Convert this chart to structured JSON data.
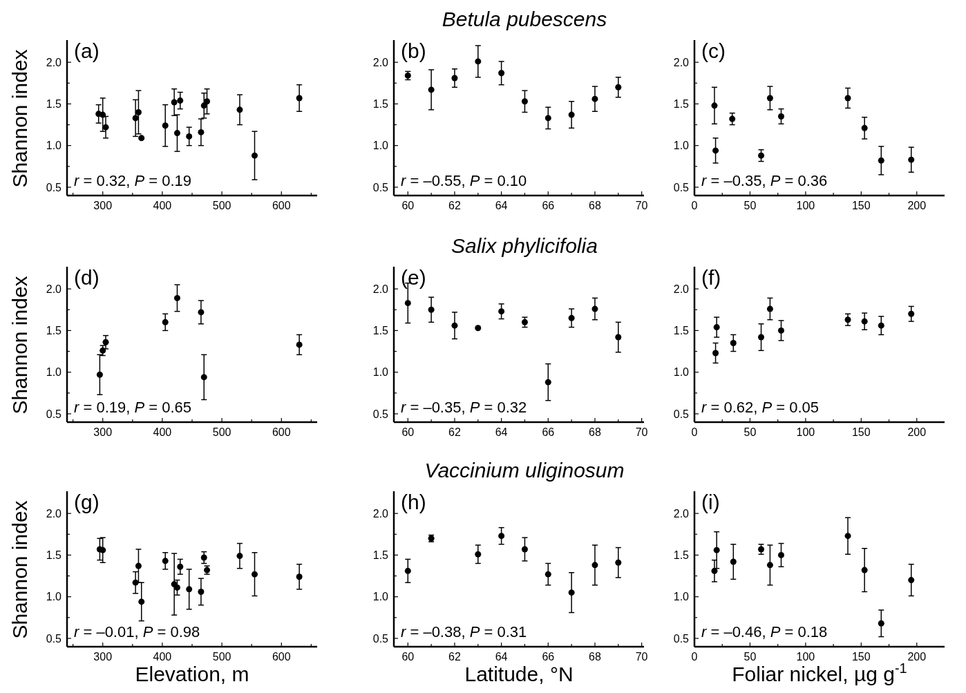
{
  "chart_data": [
    {
      "type": "scatter",
      "ylabel": "Shannon index",
      "annotations": [
        "(a)",
        "r = 0.32, P = 0.19"
      ],
      "marker": "circle",
      "xlim": [
        240,
        660
      ],
      "xticks": [
        {
          "value": 250,
          "label": null
        },
        300,
        {
          "value": 350,
          "label": null
        },
        400,
        {
          "value": 450,
          "label": null
        },
        500,
        {
          "value": 550,
          "label": null
        },
        600,
        {
          "value": 650,
          "label": null
        }
      ],
      "ylim": [
        0.4,
        2.25
      ],
      "yticks": [
        {
          "value": 0.5,
          "label": "0.5"
        },
        {
          "value": 0.75,
          "label": null
        },
        {
          "value": 1,
          "label": "1.0"
        },
        {
          "value": 1.25,
          "label": null
        },
        {
          "value": 1.5,
          "label": "1.5"
        },
        {
          "value": 1.75,
          "label": null
        },
        {
          "value": 2,
          "label": "2.0"
        }
      ],
      "color": "#000000",
      "x": [
        293,
        300,
        305,
        355,
        360,
        365,
        405,
        420,
        425,
        430,
        445,
        465,
        470,
        475,
        530,
        555,
        630
      ],
      "values": [
        1.38,
        1.37,
        1.22,
        1.33,
        1.4,
        1.09,
        1.24,
        1.52,
        1.15,
        1.54,
        1.11,
        1.16,
        1.48,
        1.53,
        1.43,
        0.88,
        1.57
      ],
      "errors": [
        0.11,
        0.2,
        0.13,
        0.22,
        0.26,
        0.01,
        0.25,
        0.16,
        0.22,
        0.1,
        0.11,
        0.16,
        0.15,
        0.15,
        0.18,
        0.29,
        0.16
      ]
    },
    {
      "type": "scatter",
      "title": "Betula pubescens",
      "annotations": [
        "(b)",
        "r = –0.55, P = 0.10"
      ],
      "marker": "circle",
      "xlim": [
        59.4,
        70.1
      ],
      "xticks": [
        60,
        {
          "value": 61,
          "label": null
        },
        62,
        {
          "value": 63,
          "label": null
        },
        64,
        {
          "value": 65,
          "label": null
        },
        66,
        {
          "value": 67,
          "label": null
        },
        68,
        {
          "value": 69,
          "label": null
        },
        70
      ],
      "ylim": [
        0.4,
        2.25
      ],
      "yticks": [
        {
          "value": 0.5,
          "label": "0.5"
        },
        {
          "value": 0.75,
          "label": null
        },
        {
          "value": 1,
          "label": "1.0"
        },
        {
          "value": 1.25,
          "label": null
        },
        {
          "value": 1.5,
          "label": "1.5"
        },
        {
          "value": 1.75,
          "label": null
        },
        {
          "value": 2,
          "label": "2.0"
        }
      ],
      "color": "#000000",
      "x": [
        60,
        61,
        62,
        63,
        64,
        65,
        66,
        67,
        68,
        69
      ],
      "values": [
        1.84,
        1.67,
        1.81,
        2.01,
        1.87,
        1.53,
        1.33,
        1.37,
        1.56,
        1.7
      ],
      "errors": [
        0.05,
        0.24,
        0.11,
        0.19,
        0.14,
        0.13,
        0.13,
        0.16,
        0.15,
        0.12
      ]
    },
    {
      "type": "scatter",
      "annotations": [
        "(c)",
        "r = –0.35, P = 0.36"
      ],
      "marker": "circle",
      "xlim": [
        0,
        225
      ],
      "xticks": [
        0,
        {
          "value": 25,
          "label": null
        },
        50,
        {
          "value": 75,
          "label": null
        },
        100,
        {
          "value": 125,
          "label": null
        },
        150,
        {
          "value": 175,
          "label": null
        },
        200
      ],
      "ylim": [
        0.4,
        2.25
      ],
      "yticks": [
        {
          "value": 0.5,
          "label": "0.5"
        },
        {
          "value": 0.75,
          "label": null
        },
        {
          "value": 1,
          "label": "1.0"
        },
        {
          "value": 1.25,
          "label": null
        },
        {
          "value": 1.5,
          "label": "1.5"
        },
        {
          "value": 1.75,
          "label": null
        },
        {
          "value": 2,
          "label": "2.0"
        }
      ],
      "color": "#000000",
      "x": [
        18,
        19,
        34,
        60,
        68,
        78,
        138,
        153,
        168,
        195
      ],
      "values": [
        1.48,
        0.94,
        1.32,
        0.88,
        1.57,
        1.35,
        1.57,
        1.21,
        0.82,
        0.83
      ],
      "errors": [
        0.22,
        0.15,
        0.07,
        0.07,
        0.14,
        0.09,
        0.12,
        0.13,
        0.17,
        0.15
      ]
    },
    {
      "type": "scatter",
      "ylabel": "Shannon index",
      "annotations": [
        "(d)",
        "r = 0.19, P = 0.65"
      ],
      "marker": "circle",
      "xlim": [
        240,
        660
      ],
      "xticks": [
        {
          "value": 250,
          "label": null
        },
        300,
        {
          "value": 350,
          "label": null
        },
        400,
        {
          "value": 450,
          "label": null
        },
        500,
        {
          "value": 550,
          "label": null
        },
        600,
        {
          "value": 650,
          "label": null
        }
      ],
      "ylim": [
        0.4,
        2.25
      ],
      "yticks": [
        {
          "value": 0.5,
          "label": "0.5"
        },
        {
          "value": 0.75,
          "label": null
        },
        {
          "value": 1,
          "label": "1.0"
        },
        {
          "value": 1.25,
          "label": null
        },
        {
          "value": 1.5,
          "label": "1.5"
        },
        {
          "value": 1.75,
          "label": null
        },
        {
          "value": 2,
          "label": "2.0"
        }
      ],
      "color": "#000000",
      "x": [
        295,
        300,
        305,
        405,
        425,
        465,
        470,
        630
      ],
      "values": [
        0.97,
        1.26,
        1.36,
        1.6,
        1.89,
        1.72,
        0.94,
        1.33
      ],
      "errors": [
        0.24,
        0.06,
        0.08,
        0.1,
        0.16,
        0.14,
        0.27,
        0.12
      ]
    },
    {
      "type": "scatter",
      "title": "Salix phylicifolia",
      "annotations": [
        "(e)",
        "r = –0.35, P = 0.32"
      ],
      "marker": "circle",
      "xlim": [
        59.4,
        70.1
      ],
      "xticks": [
        60,
        {
          "value": 61,
          "label": null
        },
        62,
        {
          "value": 63,
          "label": null
        },
        64,
        {
          "value": 65,
          "label": null
        },
        66,
        {
          "value": 67,
          "label": null
        },
        68,
        {
          "value": 69,
          "label": null
        },
        70
      ],
      "ylim": [
        0.4,
        2.25
      ],
      "yticks": [
        {
          "value": 0.5,
          "label": "0.5"
        },
        {
          "value": 0.75,
          "label": null
        },
        {
          "value": 1,
          "label": "1.0"
        },
        {
          "value": 1.25,
          "label": null
        },
        {
          "value": 1.5,
          "label": "1.5"
        },
        {
          "value": 1.75,
          "label": null
        },
        {
          "value": 2,
          "label": "2.0"
        }
      ],
      "color": "#000000",
      "x": [
        60,
        61,
        62,
        63,
        64,
        65,
        66,
        67,
        68,
        69
      ],
      "values": [
        1.83,
        1.75,
        1.56,
        1.53,
        1.73,
        1.6,
        0.88,
        1.65,
        1.76,
        1.42
      ],
      "errors": [
        0.24,
        0.15,
        0.16,
        0.01,
        0.09,
        0.06,
        0.22,
        0.11,
        0.13,
        0.18
      ]
    },
    {
      "type": "scatter",
      "annotations": [
        "(f)",
        "r = 0.62, P = 0.05"
      ],
      "marker": "circle",
      "xlim": [
        0,
        225
      ],
      "xticks": [
        0,
        {
          "value": 25,
          "label": null
        },
        50,
        {
          "value": 75,
          "label": null
        },
        100,
        {
          "value": 125,
          "label": null
        },
        150,
        {
          "value": 175,
          "label": null
        },
        200
      ],
      "ylim": [
        0.4,
        2.25
      ],
      "yticks": [
        {
          "value": 0.5,
          "label": "0.5"
        },
        {
          "value": 0.75,
          "label": null
        },
        {
          "value": 1,
          "label": "1.0"
        },
        {
          "value": 1.25,
          "label": null
        },
        {
          "value": 1.5,
          "label": "1.5"
        },
        {
          "value": 1.75,
          "label": null
        },
        {
          "value": 2,
          "label": "2.0"
        }
      ],
      "color": "#000000",
      "x": [
        19,
        20,
        35,
        60,
        68,
        78,
        138,
        153,
        168,
        195
      ],
      "values": [
        1.23,
        1.54,
        1.35,
        1.42,
        1.76,
        1.5,
        1.63,
        1.61,
        1.56,
        1.7
      ],
      "errors": [
        0.12,
        0.12,
        0.1,
        0.16,
        0.13,
        0.12,
        0.07,
        0.1,
        0.11,
        0.09
      ]
    },
    {
      "type": "scatter",
      "xlabel": "Elevation, m",
      "ylabel": "Shannon index",
      "annotations": [
        "(g)",
        "r = –0.01, P = 0.98"
      ],
      "marker": "circle",
      "xlim": [
        240,
        660
      ],
      "xticks": [
        {
          "value": 250,
          "label": null
        },
        300,
        {
          "value": 350,
          "label": null
        },
        400,
        {
          "value": 450,
          "label": null
        },
        500,
        {
          "value": 550,
          "label": null
        },
        600,
        {
          "value": 650,
          "label": null
        }
      ],
      "ylim": [
        0.4,
        2.25
      ],
      "yticks": [
        {
          "value": 0.5,
          "label": "0.5"
        },
        {
          "value": 0.75,
          "label": null
        },
        {
          "value": 1,
          "label": "1.0"
        },
        {
          "value": 1.25,
          "label": null
        },
        {
          "value": 1.5,
          "label": "1.5"
        },
        {
          "value": 1.75,
          "label": null
        },
        {
          "value": 2,
          "label": "2.0"
        }
      ],
      "color": "#000000",
      "x": [
        295,
        300,
        355,
        360,
        365,
        405,
        420,
        425,
        430,
        445,
        465,
        470,
        475,
        530,
        555,
        630
      ],
      "values": [
        1.57,
        1.56,
        1.17,
        1.37,
        0.94,
        1.43,
        1.15,
        1.11,
        1.36,
        1.09,
        1.06,
        1.47,
        1.32,
        1.49,
        1.27,
        1.24
      ],
      "errors": [
        0.13,
        0.15,
        0.13,
        0.2,
        0.23,
        0.1,
        0.37,
        0.09,
        0.09,
        0.24,
        0.16,
        0.07,
        0.05,
        0.15,
        0.26,
        0.15
      ]
    },
    {
      "type": "scatter",
      "title": "Vaccinium uliginosum",
      "xlabel": "Latitude, °N",
      "annotations": [
        "(h)",
        "r = –0.38, P = 0.31"
      ],
      "marker": "circle",
      "xlim": [
        59.4,
        70.1
      ],
      "xticks": [
        60,
        {
          "value": 61,
          "label": null
        },
        62,
        {
          "value": 63,
          "label": null
        },
        64,
        {
          "value": 65,
          "label": null
        },
        66,
        {
          "value": 67,
          "label": null
        },
        68,
        {
          "value": 69,
          "label": null
        },
        70
      ],
      "ylim": [
        0.4,
        2.25
      ],
      "yticks": [
        {
          "value": 0.5,
          "label": "0.5"
        },
        {
          "value": 0.75,
          "label": null
        },
        {
          "value": 1,
          "label": "1.0"
        },
        {
          "value": 1.25,
          "label": null
        },
        {
          "value": 1.5,
          "label": "1.5"
        },
        {
          "value": 1.75,
          "label": null
        },
        {
          "value": 2,
          "label": "2.0"
        }
      ],
      "color": "#000000",
      "x": [
        60,
        61,
        63,
        64,
        65,
        66,
        67,
        68,
        69
      ],
      "values": [
        1.31,
        1.7,
        1.51,
        1.73,
        1.57,
        1.27,
        1.05,
        1.38,
        1.41
      ],
      "errors": [
        0.14,
        0.04,
        0.11,
        0.1,
        0.14,
        0.13,
        0.24,
        0.24,
        0.18
      ]
    },
    {
      "type": "scatter",
      "xlabel": "Foliar nickel, µg g$^{-1}$",
      "annotations": [
        "(i)",
        "r = –0.46, P = 0.18"
      ],
      "marker": "circle",
      "xlim": [
        0,
        225
      ],
      "xticks": [
        0,
        {
          "value": 25,
          "label": null
        },
        50,
        {
          "value": 75,
          "label": null
        },
        100,
        {
          "value": 125,
          "label": null
        },
        150,
        {
          "value": 175,
          "label": null
        },
        200
      ],
      "ylim": [
        0.4,
        2.25
      ],
      "yticks": [
        {
          "value": 0.5,
          "label": "0.5"
        },
        {
          "value": 0.75,
          "label": null
        },
        {
          "value": 1,
          "label": "1.0"
        },
        {
          "value": 1.25,
          "label": null
        },
        {
          "value": 1.5,
          "label": "1.5"
        },
        {
          "value": 1.75,
          "label": null
        },
        {
          "value": 2,
          "label": "2.0"
        }
      ],
      "color": "#000000",
      "x": [
        18,
        20,
        35,
        60,
        68,
        78,
        138,
        153,
        168,
        195
      ],
      "values": [
        1.31,
        1.56,
        1.42,
        1.57,
        1.38,
        1.5,
        1.73,
        1.32,
        0.68,
        1.2
      ],
      "errors": [
        0.13,
        0.22,
        0.21,
        0.06,
        0.24,
        0.14,
        0.22,
        0.26,
        0.16,
        0.19
      ]
    }
  ]
}
